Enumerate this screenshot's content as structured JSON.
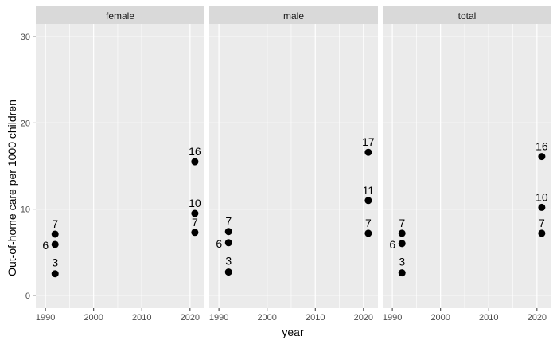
{
  "chart_data": {
    "type": "scatter",
    "facets": [
      "female",
      "male",
      "total"
    ],
    "xlabel": "year",
    "ylabel": "Out-of-home care per 1000 children",
    "xlim": [
      1988,
      2023
    ],
    "ylim": [
      -1.5,
      31.5
    ],
    "x_ticks": [
      1990,
      2000,
      2010,
      2020
    ],
    "y_ticks": [
      0,
      10,
      20,
      30
    ],
    "grid": true,
    "points": {
      "female": [
        {
          "x": 1992,
          "y": 7.1,
          "label": "7"
        },
        {
          "x": 1992,
          "y": 5.9,
          "label": "6"
        },
        {
          "x": 1992,
          "y": 2.5,
          "label": "3"
        },
        {
          "x": 2021,
          "y": 15.5,
          "label": "16"
        },
        {
          "x": 2021,
          "y": 9.5,
          "label": "10"
        },
        {
          "x": 2021,
          "y": 7.3,
          "label": "7"
        }
      ],
      "male": [
        {
          "x": 1992,
          "y": 7.4,
          "label": "7"
        },
        {
          "x": 1992,
          "y": 6.1,
          "label": "6"
        },
        {
          "x": 1992,
          "y": 2.7,
          "label": "3"
        },
        {
          "x": 2021,
          "y": 16.6,
          "label": "17"
        },
        {
          "x": 2021,
          "y": 11.0,
          "label": "11"
        },
        {
          "x": 2021,
          "y": 7.2,
          "label": "7"
        }
      ],
      "total": [
        {
          "x": 1992,
          "y": 7.2,
          "label": "7"
        },
        {
          "x": 1992,
          "y": 6.0,
          "label": "6"
        },
        {
          "x": 1992,
          "y": 2.6,
          "label": "3"
        },
        {
          "x": 2021,
          "y": 16.1,
          "label": "16"
        },
        {
          "x": 2021,
          "y": 10.2,
          "label": "10"
        },
        {
          "x": 2021,
          "y": 7.2,
          "label": "7"
        }
      ]
    },
    "colors": {
      "panel_background": "#ebebeb",
      "strip_background": "#d9d9d9",
      "gridline": "#ffffff",
      "point": "#000000"
    }
  }
}
